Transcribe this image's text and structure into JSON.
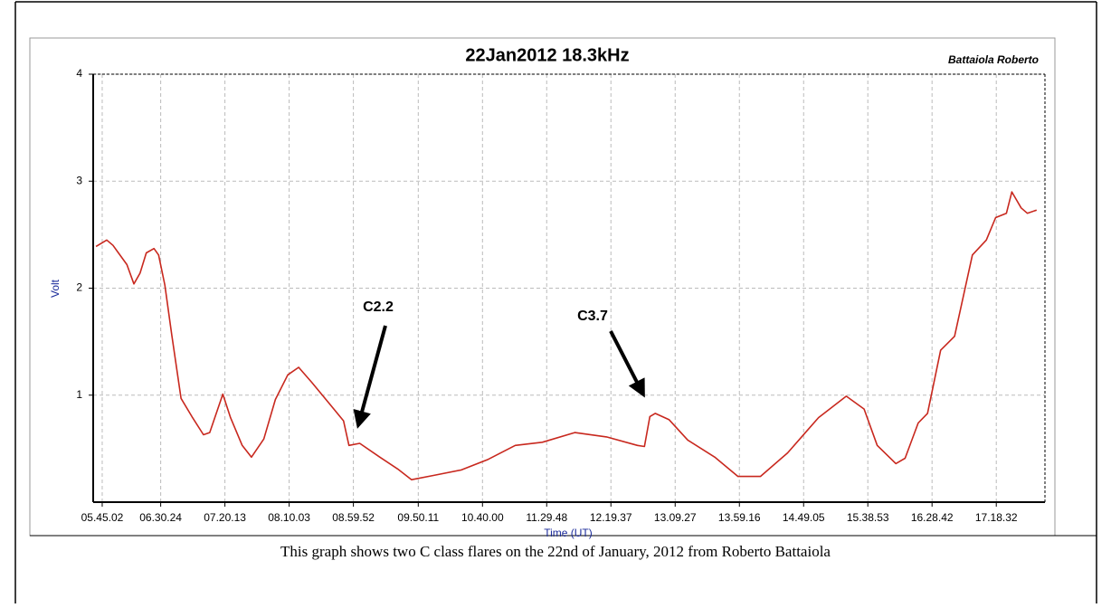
{
  "chart_data": {
    "type": "line",
    "title": "22Jan2012 18.3kHz",
    "author": "Battaiola Roberto",
    "x_label": "Time (UT)",
    "y_label": "Volt",
    "caption": "This graph shows two C class flares on the 22nd of January, 2012 from Roberto Battaiola",
    "annotations": [
      "C2.2",
      "C3.7"
    ],
    "xlim": [
      5.634,
      17.938
    ],
    "ylim": [
      0,
      4
    ],
    "xticks": [
      {
        "value": 5.7506,
        "label": "05.45.02"
      },
      {
        "value": 6.5067,
        "label": "06.30.24"
      },
      {
        "value": 7.3369,
        "label": "07.20.13"
      },
      {
        "value": 8.1675,
        "label": "08.10.03"
      },
      {
        "value": 8.9978,
        "label": "08.59.52"
      },
      {
        "value": 9.8364,
        "label": "09.50.11"
      },
      {
        "value": 10.6667,
        "label": "10.40.00"
      },
      {
        "value": 11.4967,
        "label": "11.29.48"
      },
      {
        "value": 12.3269,
        "label": "12.19.37"
      },
      {
        "value": 13.1575,
        "label": "13.09.27"
      },
      {
        "value": 13.9878,
        "label": "13.59.16"
      },
      {
        "value": 14.8181,
        "label": "14.49.05"
      },
      {
        "value": 15.6481,
        "label": "15.38.53"
      },
      {
        "value": 16.4783,
        "label": "16.28.42"
      },
      {
        "value": 17.3089,
        "label": "17.18.32"
      }
    ],
    "yticks": [
      1,
      2,
      3,
      4
    ],
    "grid": true,
    "color": "#c8281e",
    "x": [
      5.67,
      5.81,
      5.89,
      6.07,
      6.16,
      6.24,
      6.32,
      6.42,
      6.48,
      6.56,
      6.65,
      6.77,
      6.91,
      7.06,
      7.14,
      7.31,
      7.41,
      7.56,
      7.68,
      7.84,
      7.99,
      8.15,
      8.29,
      8.46,
      8.7,
      8.87,
      8.94,
      9.08,
      9.34,
      9.57,
      9.75,
      10.04,
      10.39,
      10.74,
      11.09,
      11.44,
      11.86,
      12.27,
      12.67,
      12.76,
      12.83,
      12.9,
      13.08,
      13.32,
      13.67,
      13.97,
      14.26,
      14.61,
      15.01,
      15.37,
      15.6,
      15.77,
      16.01,
      16.13,
      16.3,
      16.42,
      16.59,
      16.77,
      17.0,
      17.18,
      17.3,
      17.44,
      17.51,
      17.63,
      17.71,
      17.83
    ],
    "values": [
      2.39,
      2.45,
      2.4,
      2.22,
      2.04,
      2.14,
      2.33,
      2.37,
      2.31,
      2.03,
      1.56,
      0.97,
      0.8,
      0.63,
      0.65,
      1.01,
      0.79,
      0.53,
      0.42,
      0.59,
      0.96,
      1.19,
      1.26,
      1.12,
      0.91,
      0.76,
      0.53,
      0.55,
      0.42,
      0.31,
      0.21,
      0.25,
      0.3,
      0.4,
      0.53,
      0.56,
      0.65,
      0.61,
      0.53,
      0.52,
      0.8,
      0.83,
      0.77,
      0.58,
      0.42,
      0.24,
      0.24,
      0.46,
      0.79,
      0.99,
      0.87,
      0.53,
      0.36,
      0.41,
      0.74,
      0.83,
      1.42,
      1.55,
      2.31,
      2.45,
      2.66,
      2.7,
      2.9,
      2.75,
      2.7,
      2.73
    ]
  }
}
